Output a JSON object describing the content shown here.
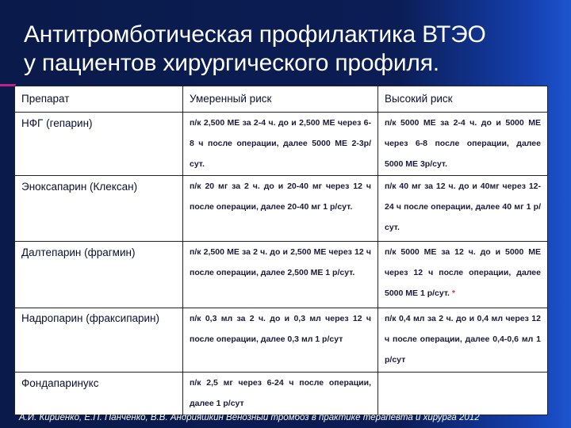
{
  "title": [
    "Антитромботическая профилактика ВТЭО",
    "у пациентов хирургического профиля."
  ],
  "table": {
    "headers": [
      "Препарат",
      "Умеренный риск",
      "Высокий риск"
    ],
    "rows": [
      {
        "drug": "НФГ (гепарин)",
        "moderate": "п/к 2,500 МЕ за 2-4 ч. до и 2,500 МЕ через 6-8 ч после операции, далее 5000 МЕ 2-3р/сут.",
        "high": "п/к 5000 МЕ за 2-4 ч. до и 5000 МЕ через 6-8 после операции, далее 5000 МЕ 3р/сут."
      },
      {
        "drug": "Эноксапарин (Клексан)",
        "moderate": "п/к 20 мг за 2 ч. до и 20-40 мг через 12 ч после операции, далее 20-40 мг 1 р/сут.",
        "high": "п/к 40 мг за 12 ч. до и 40мг через 12-24 ч после операции, далее 40 мг 1 р/сут."
      },
      {
        "drug": "Далтепарин (фрагмин)",
        "moderate": "п/к 2,500 МЕ за 2 ч. до и 2,500 МЕ через 12 ч после операции, далее 2,500 МЕ 1 р/сут.",
        "high": "п/к 5000 МЕ за 12 ч. до и 5000 МЕ через 12 ч после операции, далее 5000 МЕ 1 р/сут.",
        "high_mark": "*"
      },
      {
        "drug": "Надропарин (фраксипарин)",
        "moderate": "п/к 0,3 мл за 2 ч. до и 0,3 мл через 12 ч после операции, далее 0,3 мл 1 р/сут",
        "high": "п/к 0,4 мл за 2 ч. до и 0,4 мл через 12 ч после операции, далее 0,4-0,6 мл 1 р/сут"
      },
      {
        "drug": "Фондапаринукс",
        "moderate": "п/к 2,5 мг через 6-24 ч после операции, далее 1 р/сут",
        "high": ""
      }
    ]
  },
  "citation": "А.И. Кириенко, Е.П. Панченко, В.В. Андрияшкин  Венозный тромбоз в практике терапевта и хирурга 2012"
}
